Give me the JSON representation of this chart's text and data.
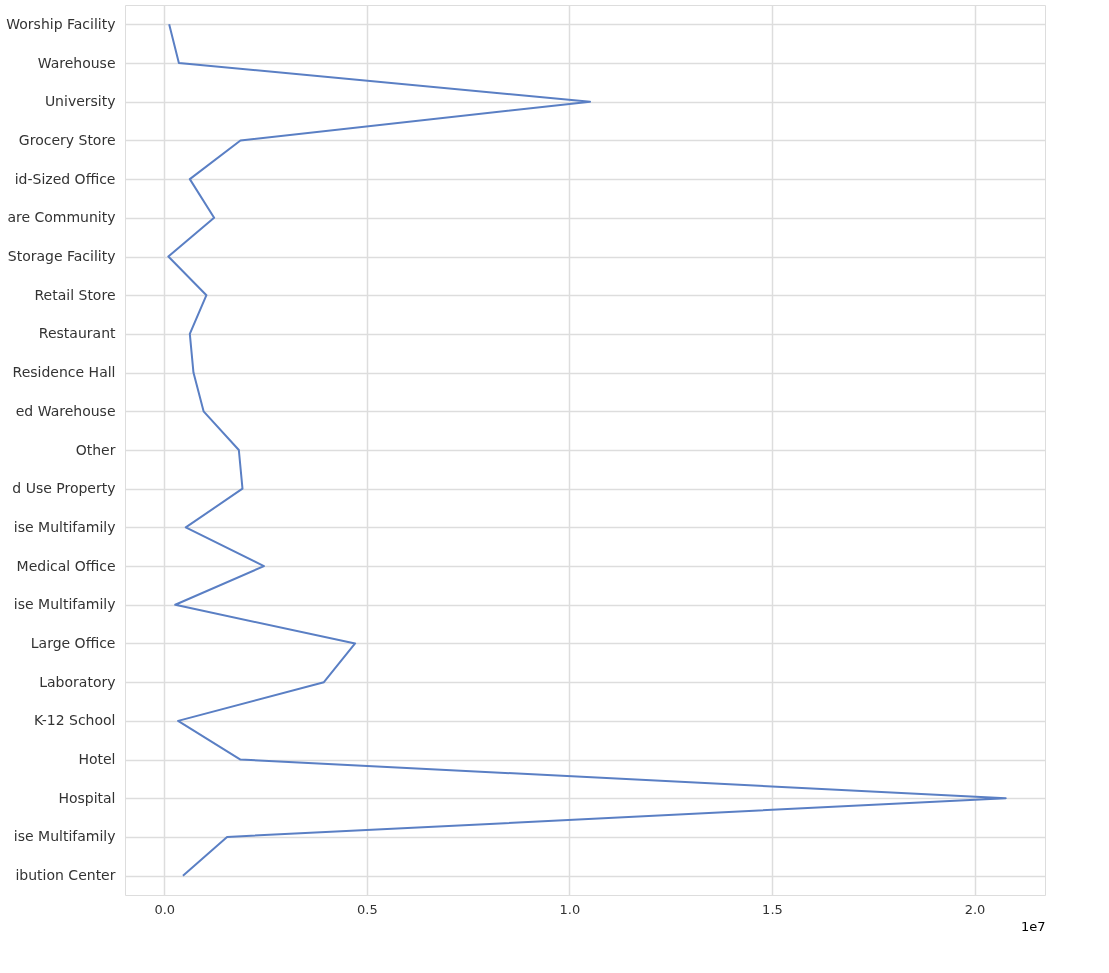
{
  "chart_data": {
    "type": "line",
    "orientation": "horizontal",
    "categories": [
      "Worship Facility",
      "Warehouse",
      "University",
      "Grocery Store",
      "id-Sized Office",
      "are Community",
      "Storage Facility",
      "Retail Store",
      "Restaurant",
      "Residence Hall",
      "ed Warehouse",
      "Other",
      "d Use Property",
      "ise Multifamily",
      "Medical Office",
      "ise Multifamily",
      "Large Office",
      "Laboratory",
      "K-12 School",
      "Hotel",
      "Hospital",
      "ise Multifamily",
      "ibution Center"
    ],
    "series": [
      {
        "color": "#5a7fc4",
        "values": [
          0.012,
          0.036,
          1.051,
          0.188,
          0.063,
          0.123,
          0.01,
          0.104,
          0.063,
          0.072,
          0.097,
          0.184,
          0.193,
          0.053,
          0.246,
          0.027,
          0.471,
          0.394,
          0.034,
          0.188,
          2.077,
          0.155,
          0.046
        ]
      }
    ],
    "xlim": [
      -0.097,
      2.174
    ],
    "xticks": [
      {
        "value": 0,
        "label": "0.0"
      },
      0.5,
      {
        "value": 1,
        "label": "1.0"
      },
      1.5,
      {
        "value": 2,
        "label": "2.0"
      }
    ],
    "xlabel": "1e7",
    "grid": true,
    "line_style": "solid",
    "marker": "none"
  }
}
